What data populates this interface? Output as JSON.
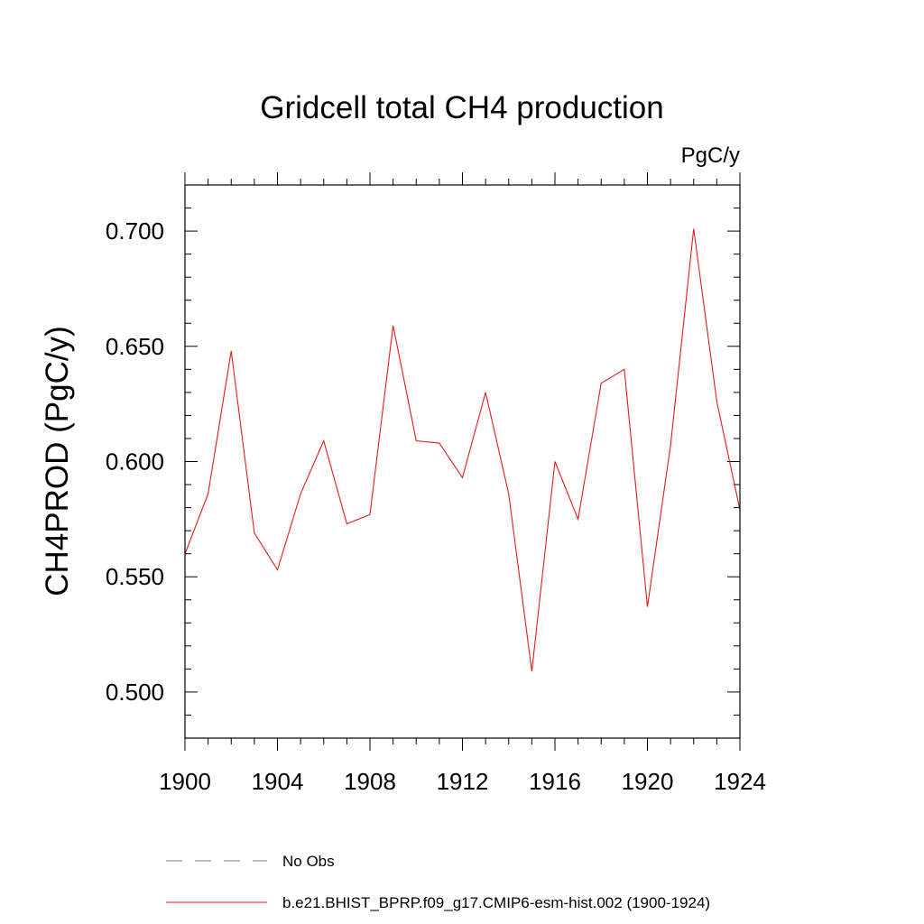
{
  "chart_data": {
    "type": "line",
    "title": "Gridcell total CH4 production",
    "units_label": "PgC/y",
    "ylabel": "CH4PROD  (PgC/y)",
    "xlabel": "",
    "xlim": [
      1900,
      1924
    ],
    "ylim": [
      0.48,
      0.72
    ],
    "x_ticks": [
      1900,
      1904,
      1908,
      1912,
      1916,
      1920,
      1924
    ],
    "x_tick_labels": [
      "1900",
      "1904",
      "1908",
      "1912",
      "1916",
      "1920",
      "1924"
    ],
    "x_minor_step": 1,
    "y_ticks": [
      0.5,
      0.55,
      0.6,
      0.65,
      0.7
    ],
    "y_tick_labels": [
      "0.500",
      "0.550",
      "0.600",
      "0.650",
      "0.700"
    ],
    "y_minor_step": 0.01,
    "grid": false,
    "legend_position": "bottom",
    "series": [
      {
        "name": "No Obs",
        "color": "#6f6fb5",
        "style": "dashed",
        "x": [],
        "values": []
      },
      {
        "name": "b.e21.BHIST_BPRP.f09_g17.CMIP6-esm-hist.002 (1900-1924)",
        "color": "#e31a1c",
        "style": "solid",
        "x": [
          1900,
          1901,
          1902,
          1903,
          1904,
          1905,
          1906,
          1907,
          1908,
          1909,
          1910,
          1911,
          1912,
          1913,
          1914,
          1915,
          1916,
          1917,
          1918,
          1919,
          1920,
          1921,
          1922,
          1923,
          1924
        ],
        "values": [
          0.56,
          0.586,
          0.648,
          0.569,
          0.553,
          0.586,
          0.609,
          0.573,
          0.577,
          0.659,
          0.609,
          0.608,
          0.593,
          0.63,
          0.586,
          0.509,
          0.6,
          0.575,
          0.634,
          0.64,
          0.537,
          0.607,
          0.701,
          0.626,
          0.579
        ]
      }
    ]
  }
}
